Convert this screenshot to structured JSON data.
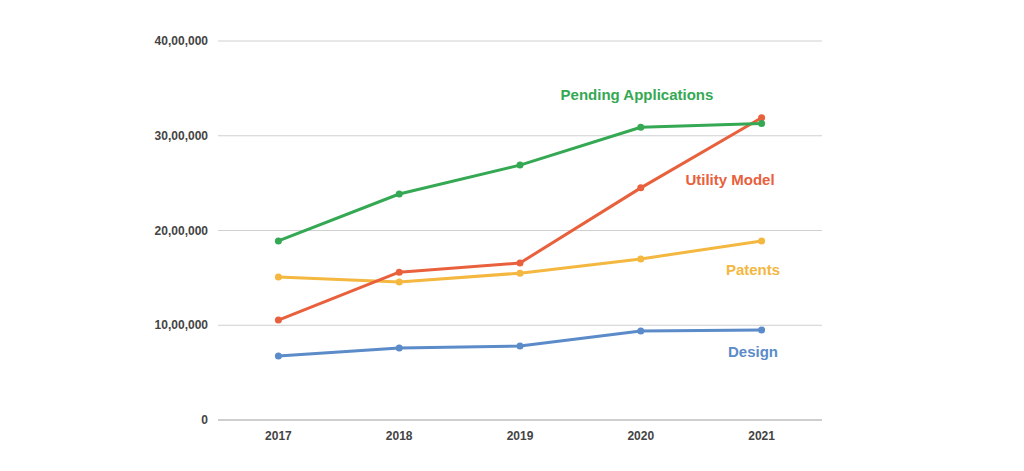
{
  "chart_data": {
    "type": "line",
    "categories": [
      "2017",
      "2018",
      "2019",
      "2020",
      "2021"
    ],
    "series": [
      {
        "name": "Pending Applications",
        "color": "#34a853",
        "values": [
          1890000,
          2385000,
          2690000,
          3090000,
          3130000
        ]
      },
      {
        "name": "Utility Model",
        "color": "#e8603c",
        "values": [
          1055000,
          1560000,
          1657000,
          2450000,
          3190000
        ]
      },
      {
        "name": "Patents",
        "color": "#f4b73f",
        "values": [
          1510000,
          1456000,
          1550000,
          1700000,
          1890000
        ]
      },
      {
        "name": "Design",
        "color": "#5b8bc9",
        "values": [
          675000,
          760000,
          780000,
          940000,
          950000
        ]
      }
    ],
    "ylim": [
      0,
      4000000
    ],
    "yticks": [
      0,
      {
        "value": 1000000,
        "label": "10,00,000"
      },
      {
        "value": 2000000,
        "label": "20,00,000"
      },
      {
        "value": 3000000,
        "label": "30,00,000"
      },
      {
        "value": 4000000,
        "label": "40,00,000"
      }
    ],
    "grid": true,
    "marker": "circle"
  }
}
